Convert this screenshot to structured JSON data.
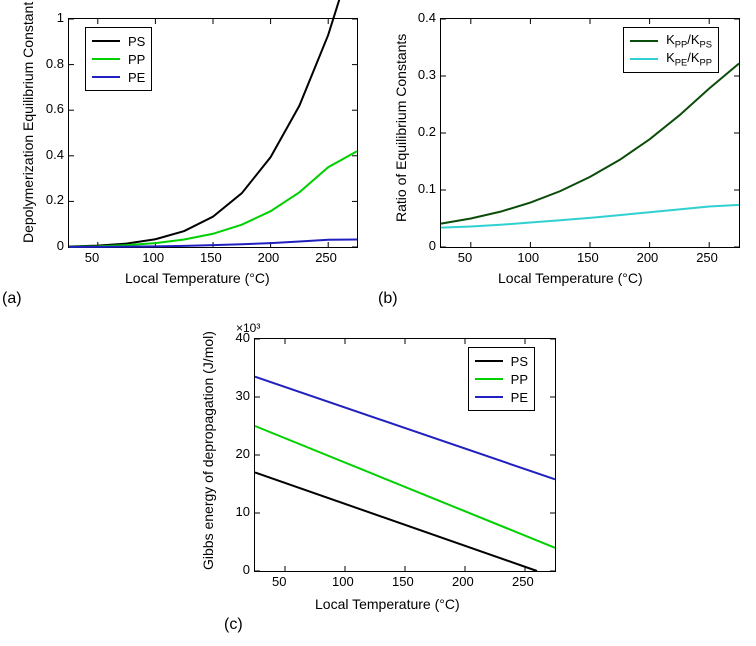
{
  "panel_a": {
    "letter": "(a)",
    "type": "line",
    "xlabel": "Local Temperature (°C)",
    "ylabel": "Depolymerization Equilibrium Constant",
    "xlim": [
      25,
      275
    ],
    "ylim": [
      0,
      1.0
    ],
    "xticks": [
      50,
      100,
      150,
      200,
      250
    ],
    "yticks": [
      0,
      0.2,
      0.4,
      0.6,
      0.8,
      1.0
    ],
    "background_color": "#ffffff",
    "axis_color": "#000000",
    "label_fontsize": 14,
    "tick_fontsize": 13,
    "line_width": 2,
    "series": [
      {
        "name": "PS",
        "color": "#000000",
        "x": [
          25,
          50,
          75,
          100,
          125,
          150,
          175,
          200,
          225,
          250,
          273
        ],
        "y": [
          0.002,
          0.006,
          0.015,
          0.034,
          0.07,
          0.133,
          0.236,
          0.394,
          0.62,
          0.93,
          1.3
        ]
      },
      {
        "name": "PP",
        "color": "#00d000",
        "x": [
          25,
          50,
          75,
          100,
          125,
          150,
          175,
          200,
          225,
          250,
          275
        ],
        "y": [
          0.001,
          0.003,
          0.008,
          0.017,
          0.033,
          0.058,
          0.098,
          0.157,
          0.24,
          0.35,
          0.42
        ]
      },
      {
        "name": "PE",
        "color": "#2020c0",
        "x": [
          25,
          50,
          75,
          100,
          125,
          150,
          175,
          200,
          225,
          250,
          275
        ],
        "y": [
          0.0003,
          0.0007,
          0.0015,
          0.003,
          0.005,
          0.008,
          0.012,
          0.017,
          0.024,
          0.032,
          0.033
        ]
      }
    ],
    "legend": {
      "pos": "top-left",
      "items": [
        {
          "name": "PS",
          "color": "#000000"
        },
        {
          "name": "PP",
          "color": "#00d000"
        },
        {
          "name": "PE",
          "color": "#2020c0"
        }
      ]
    }
  },
  "panel_b": {
    "letter": "(b)",
    "type": "line",
    "xlabel": "Local Temperature (°C)",
    "ylabel": "Ratio of Equilibrium Constants",
    "xlim": [
      25,
      275
    ],
    "ylim": [
      0,
      0.4
    ],
    "xticks": [
      50,
      100,
      150,
      200,
      250
    ],
    "yticks": [
      0,
      0.1,
      0.2,
      0.3,
      0.4
    ],
    "background_color": "#ffffff",
    "axis_color": "#000000",
    "label_fontsize": 14,
    "tick_fontsize": 13,
    "line_width": 2,
    "series": [
      {
        "name": "KPP/KPS",
        "color": "#0a4d0a",
        "x": [
          25,
          50,
          75,
          100,
          125,
          150,
          175,
          200,
          225,
          250,
          275
        ],
        "y": [
          0.041,
          0.05,
          0.062,
          0.078,
          0.098,
          0.123,
          0.153,
          0.189,
          0.231,
          0.278,
          0.322
        ]
      },
      {
        "name": "KPE/KPP",
        "color": "#30d0d0",
        "x": [
          25,
          50,
          75,
          100,
          125,
          150,
          175,
          200,
          225,
          250,
          275
        ],
        "y": [
          0.034,
          0.036,
          0.039,
          0.043,
          0.047,
          0.051,
          0.056,
          0.061,
          0.066,
          0.071,
          0.074
        ]
      }
    ],
    "legend": {
      "pos": "top-right",
      "items": [
        {
          "name": "K<sub>PP</sub>/K<sub>PS</sub>",
          "color": "#0a4d0a"
        },
        {
          "name": "K<sub>PE</sub>/K<sub>PP</sub>",
          "color": "#30d0d0"
        }
      ]
    }
  },
  "panel_c": {
    "letter": "(c)",
    "type": "line",
    "xlabel": "Local Temperature (°C)",
    "ylabel": "Gibbs energy of depropagation (J/mol)",
    "xlim": [
      25,
      275
    ],
    "ylim": [
      0,
      40000
    ],
    "xticks": [
      50,
      100,
      150,
      200,
      250
    ],
    "yticks": [
      0,
      10000,
      20000,
      30000,
      40000
    ],
    "ytick_labels": [
      "0",
      "10",
      "20",
      "30",
      "40"
    ],
    "y_multiplier_label": "×10³",
    "background_color": "#ffffff",
    "axis_color": "#000000",
    "label_fontsize": 14,
    "tick_fontsize": 13,
    "line_width": 2,
    "series": [
      {
        "name": "PS",
        "color": "#000000",
        "x": [
          25,
          260
        ],
        "y": [
          17000,
          0
        ]
      },
      {
        "name": "PP",
        "color": "#00d000",
        "x": [
          25,
          275
        ],
        "y": [
          25000,
          4000
        ]
      },
      {
        "name": "PE",
        "color": "#2020c0",
        "x": [
          25,
          275
        ],
        "y": [
          33500,
          15800
        ]
      }
    ],
    "legend": {
      "pos": "top-right",
      "items": [
        {
          "name": "PS",
          "color": "#000000"
        },
        {
          "name": "PP",
          "color": "#00d000"
        },
        {
          "name": "PE",
          "color": "#2020c0"
        }
      ]
    }
  }
}
